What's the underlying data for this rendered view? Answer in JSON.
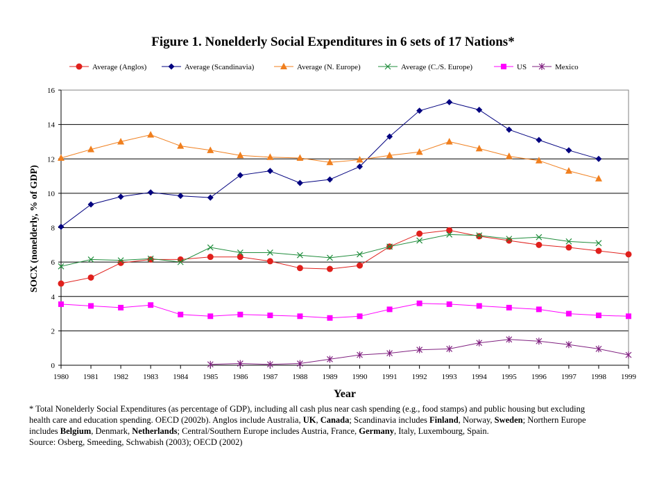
{
  "chart_data": {
    "type": "line",
    "title": "Figure 1. Nonelderly Social Expenditures in 6 sets of 17 Nations*",
    "xlabel": "Year",
    "ylabel": "SOCX (nonelderly, % of GDP)",
    "ylim": [
      0,
      16
    ],
    "yticks": [
      0,
      2,
      4,
      6,
      8,
      10,
      12,
      14,
      16
    ],
    "x": [
      1980,
      1981,
      1982,
      1983,
      1984,
      1985,
      1986,
      1987,
      1988,
      1989,
      1990,
      1991,
      1992,
      1993,
      1994,
      1995,
      1996,
      1997,
      1998,
      1999
    ],
    "grid": "horizontal",
    "legend_position": "top",
    "series": [
      {
        "name": "Average (Anglos)",
        "color": "#e0201c",
        "marker": "circle",
        "values": [
          4.75,
          5.1,
          5.95,
          6.15,
          6.15,
          6.3,
          6.3,
          6.05,
          5.65,
          5.6,
          5.8,
          6.9,
          7.65,
          7.85,
          7.5,
          7.25,
          7.0,
          6.85,
          6.65,
          6.45
        ]
      },
      {
        "name": "Average (Scandinavia)",
        "color": "#00007f",
        "marker": "diamond",
        "values": [
          8.05,
          9.35,
          9.8,
          10.05,
          9.85,
          9.75,
          11.05,
          11.3,
          10.6,
          10.8,
          11.55,
          13.3,
          14.8,
          15.3,
          14.85,
          13.7,
          13.1,
          12.5,
          12.0,
          null
        ]
      },
      {
        "name": "Average (N. Europe)",
        "color": "#f07f1e",
        "marker": "triangle",
        "values": [
          12.05,
          12.55,
          13.0,
          13.4,
          12.75,
          12.5,
          12.2,
          12.1,
          12.05,
          11.8,
          11.95,
          12.2,
          12.4,
          13.0,
          12.6,
          12.15,
          11.9,
          11.3,
          10.85,
          null
        ]
      },
      {
        "name": "Average (C./S. Europe)",
        "color": "#1f8c3b",
        "marker": "x",
        "values": [
          5.75,
          6.15,
          6.1,
          6.2,
          6.0,
          6.85,
          6.55,
          6.55,
          6.4,
          6.25,
          6.45,
          6.9,
          7.25,
          7.6,
          7.55,
          7.35,
          7.45,
          7.2,
          7.1,
          null
        ]
      },
      {
        "name": "US",
        "color": "#ff00ff",
        "marker": "square",
        "values": [
          3.55,
          3.45,
          3.35,
          3.5,
          2.95,
          2.85,
          2.95,
          2.9,
          2.85,
          2.75,
          2.85,
          3.25,
          3.6,
          3.55,
          3.45,
          3.35,
          3.25,
          3.0,
          2.9,
          2.85
        ]
      },
      {
        "name": "Mexico",
        "color": "#7f1f7f",
        "marker": "star",
        "values": [
          null,
          null,
          null,
          null,
          null,
          0.05,
          0.1,
          0.05,
          0.1,
          0.35,
          0.6,
          0.7,
          0.9,
          0.95,
          1.3,
          1.5,
          1.4,
          1.2,
          0.95,
          0.6
        ]
      }
    ]
  },
  "footnote": {
    "line1_a": "* Total Nonelderly Social Expenditures (as percentage of GDP), including all cash plus near cash spending (e.g., food stamps) and public housing but excluding",
    "line2_a": "health care and education spending. OECD (2002b). Anglos include Australia, ",
    "line2_b": "UK",
    "line2_c": ", ",
    "line2_d": "Canada",
    "line2_e": "; Scandinavia includes ",
    "line2_f": "Finland",
    "line2_g": ", Norway, ",
    "line2_h": "Sweden",
    "line2_i": "; Northern Europe",
    "line3_a": "includes ",
    "line3_b": "Belgium",
    "line3_c": ", Denmark, ",
    "line3_d": "Netherlands",
    "line3_e": "; Central/Southern Europe includes Austria, France, ",
    "line3_f": "Germany",
    "line3_g": ", Italy, Luxembourg, Spain.",
    "line4": "Source: Osberg, Smeeding, Schwabish (2003); OECD (2002)"
  }
}
